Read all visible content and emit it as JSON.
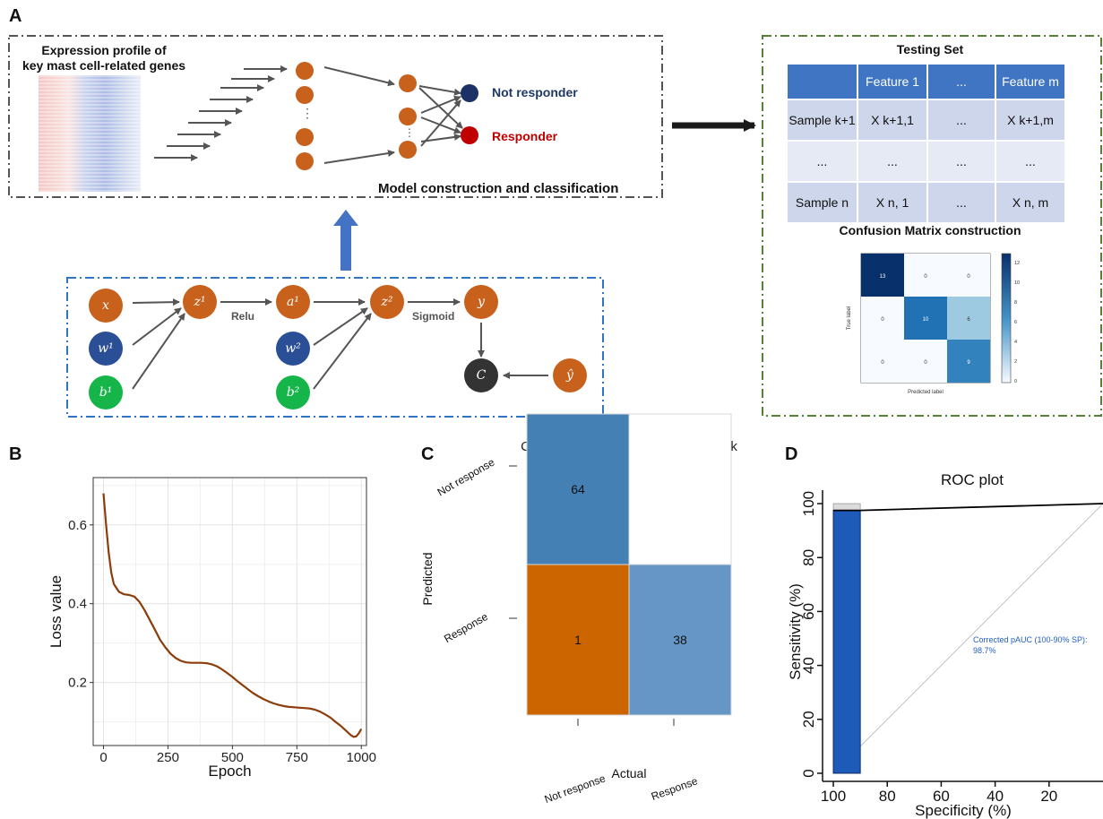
{
  "panels": {
    "a": "A",
    "b": "B",
    "c": "C",
    "d": "D"
  },
  "panelA": {
    "expression_title_line1": "Expression profile of",
    "expression_title_line2": "key mast cell-related genes",
    "not_responder": "Not responder",
    "responder": "Responder",
    "model_title": "Model construction and classification",
    "hidden_dots": "⋮",
    "relu": "Relu",
    "sigmoid": "Sigmoid",
    "nodes": {
      "x": "x",
      "w1": "w¹",
      "b1": "b¹",
      "z1": "z¹",
      "a1": "a¹",
      "w2": "w²",
      "b2": "b²",
      "z2": "z²",
      "y": "y",
      "c": "C",
      "yhat": "ŷ"
    },
    "testing_set": {
      "title": "Testing Set",
      "header": [
        "",
        "Feature 1",
        "...",
        "Feature m"
      ],
      "rows": [
        [
          "Sample k+1",
          "X k+1,1",
          "...",
          "X k+1,m"
        ],
        [
          "...",
          "...",
          "...",
          "..."
        ],
        [
          "Sample n",
          "X n, 1",
          "...",
          "X n, m"
        ]
      ]
    },
    "confusion_construction_title": "Confusion Matrix construction",
    "mini_matrix": {
      "values": [
        [
          "13",
          "0",
          "0"
        ],
        [
          "0",
          "10",
          "6"
        ],
        [
          "0",
          "0",
          "9"
        ]
      ],
      "xlabel": "Predicted label",
      "ylabel": "True label",
      "colorbar_ticks": [
        "12",
        "10",
        "8",
        "6",
        "4",
        "2",
        "0"
      ]
    },
    "colors": {
      "orange": "#c8611c",
      "blue": "#2b4f96",
      "green": "#16b54a",
      "dark": "#333333",
      "navy": "#1c3266",
      "red": "#c00000"
    }
  },
  "chart_data": [
    {
      "type": "line",
      "title": "",
      "xlabel": "Epoch",
      "ylabel": "Loss value",
      "xlim": [
        -40,
        1020
      ],
      "ylim": [
        0.04,
        0.72
      ],
      "xticks": [
        "0",
        "250",
        "500",
        "750",
        "1000"
      ],
      "yticks": [
        "0.2",
        "0.4",
        "0.6"
      ],
      "grid": true,
      "series": [
        {
          "x": [
            0,
            10,
            20,
            30,
            40,
            60,
            80,
            100,
            120,
            140,
            160,
            180,
            200,
            220,
            240,
            260,
            280,
            300,
            320,
            340,
            360,
            380,
            400,
            420,
            440,
            460,
            480,
            500,
            520,
            540,
            560,
            580,
            600,
            620,
            640,
            660,
            680,
            700,
            720,
            740,
            760,
            780,
            800,
            820,
            840,
            860,
            880,
            900,
            920,
            940,
            960,
            970,
            980,
            990,
            1000
          ],
          "y": [
            0.68,
            0.6,
            0.53,
            0.48,
            0.45,
            0.43,
            0.424,
            0.422,
            0.418,
            0.404,
            0.383,
            0.358,
            0.333,
            0.308,
            0.289,
            0.273,
            0.262,
            0.255,
            0.251,
            0.25,
            0.25,
            0.25,
            0.249,
            0.246,
            0.241,
            0.233,
            0.224,
            0.214,
            0.203,
            0.193,
            0.183,
            0.173,
            0.165,
            0.158,
            0.152,
            0.147,
            0.143,
            0.14,
            0.138,
            0.137,
            0.136,
            0.135,
            0.134,
            0.131,
            0.126,
            0.119,
            0.111,
            0.1,
            0.09,
            0.078,
            0.066,
            0.062,
            0.063,
            0.071,
            0.082
          ],
          "color": "#8b3d0a"
        }
      ]
    },
    {
      "type": "heatmap",
      "title": "Confusion Matrix for Neural Network",
      "xlabel": "Actual",
      "ylabel": "Predicted",
      "x_categories": [
        "Not response",
        "Response"
      ],
      "y_categories": [
        "Not response",
        "Response"
      ],
      "cells": [
        {
          "row": 0,
          "col": 0,
          "value": "64",
          "color": "#4580b5"
        },
        {
          "row": 0,
          "col": 1,
          "value": "",
          "color": "#ffffff"
        },
        {
          "row": 1,
          "col": 0,
          "value": "1",
          "color": "#cc6400"
        },
        {
          "row": 1,
          "col": 1,
          "value": "38",
          "color": "#6696c6"
        }
      ]
    },
    {
      "type": "line",
      "title": "ROC plot",
      "xlabel": "Specificity (%)",
      "ylabel": "Sensitivity (%)",
      "xlim": [
        104,
        0
      ],
      "ylim": [
        -3,
        105
      ],
      "xticks": [
        "100",
        "80",
        "60",
        "40",
        "20"
      ],
      "yticks": [
        "0",
        "20",
        "40",
        "60",
        "80",
        "100"
      ],
      "grid": false,
      "series": [
        {
          "x": [
            100,
            90,
            0
          ],
          "y": [
            97.5,
            97.5,
            100
          ],
          "color": "#000000"
        }
      ],
      "pauc_region": {
        "x_from": 100,
        "x_to": 90,
        "y_top": 97.5,
        "color": "#1e5bb8"
      },
      "diagonal": {
        "x": [
          100,
          0
        ],
        "y": [
          0,
          100
        ],
        "color": "#c0c0c0"
      },
      "annotation_line1": "Corrected pAUC (100-90% SP):",
      "annotation_line2": "98.7%"
    }
  ]
}
